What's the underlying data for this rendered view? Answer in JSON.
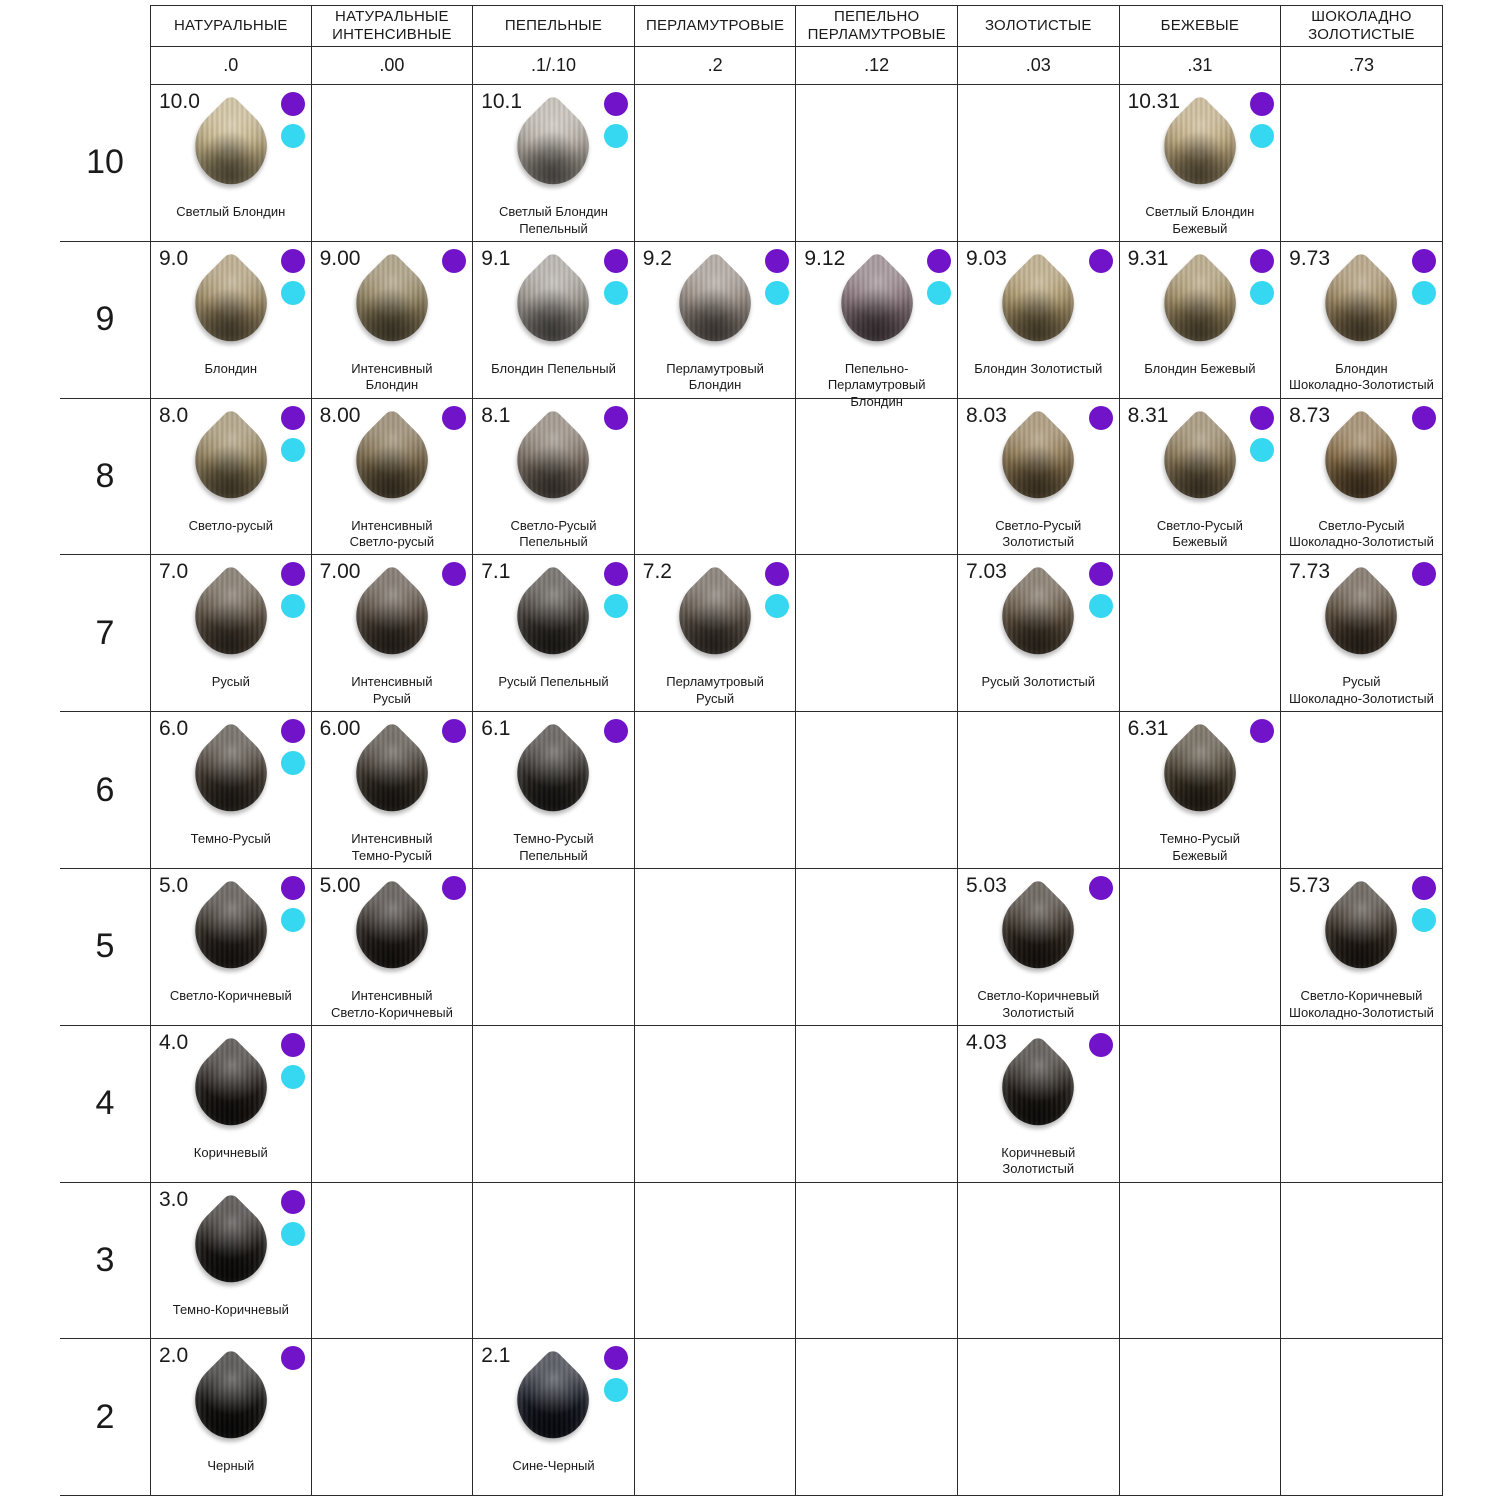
{
  "dot_colors": {
    "purple": "#7113c9",
    "cyan": "#36d7f0"
  },
  "columns": [
    {
      "title_lines": [
        "НАТУРАЛЬНЫЕ"
      ],
      "code": ".0"
    },
    {
      "title_lines": [
        "НАТУРАЛЬНЫЕ",
        "ИНТЕНСИВНЫЕ"
      ],
      "code": ".00"
    },
    {
      "title_lines": [
        "ПЕПЕЛЬНЫЕ"
      ],
      "code": ".1/.10"
    },
    {
      "title_lines": [
        "ПЕРЛАМУТРОВЫЕ"
      ],
      "code": ".2"
    },
    {
      "title_lines": [
        "ПЕПЕЛЬНО",
        "ПЕРЛАМУТРОВЫЕ"
      ],
      "code": ".12"
    },
    {
      "title_lines": [
        "ЗОЛОТИСТЫЕ"
      ],
      "code": ".03"
    },
    {
      "title_lines": [
        "БЕЖЕВЫЕ"
      ],
      "code": ".31"
    },
    {
      "title_lines": [
        "ШОКОЛАДНО",
        "ЗОЛОТИСТЫЕ"
      ],
      "code": ".73"
    }
  ],
  "rows": [
    {
      "level": "10",
      "cells": [
        {
          "code": "10.0",
          "label": [
            "Светлый Блондин"
          ],
          "dots": [
            "purple",
            "cyan"
          ],
          "color": "#c6b383"
        },
        null,
        {
          "code": "10.1",
          "label": [
            "Светлый Блондин",
            "Пепельный"
          ],
          "dots": [
            "purple",
            "cyan"
          ],
          "color": "#b9b1a6"
        },
        null,
        null,
        null,
        {
          "code": "10.31",
          "label": [
            "Светлый Блондин",
            "Бежевый"
          ],
          "dots": [
            "purple",
            "cyan"
          ],
          "color": "#c0a878"
        },
        null
      ]
    },
    {
      "level": "9",
      "cells": [
        {
          "code": "9.0",
          "label": [
            "Блондин"
          ],
          "dots": [
            "purple",
            "cyan"
          ],
          "color": "#a79267"
        },
        {
          "code": "9.00",
          "label": [
            "Интенсивный",
            "Блондин"
          ],
          "dots": [
            "purple"
          ],
          "color": "#94835c"
        },
        {
          "code": "9.1",
          "label": [
            "Блондин Пепельный"
          ],
          "dots": [
            "purple",
            "cyan"
          ],
          "color": "#a49d95"
        },
        {
          "code": "9.2",
          "label": [
            "Перламутровый",
            "Блондин"
          ],
          "dots": [
            "purple",
            "cyan"
          ],
          "color": "#9b8e84"
        },
        {
          "code": "9.12",
          "label": [
            "Пепельно-Перламутровый",
            "Блондин"
          ],
          "dots": [
            "purple",
            "cyan"
          ],
          "color": "#867178"
        },
        {
          "code": "9.03",
          "label": [
            "Блондин Золотистый"
          ],
          "dots": [
            "purple"
          ],
          "color": "#ad9665"
        },
        {
          "code": "9.31",
          "label": [
            "Блондин Бежевый"
          ],
          "dots": [
            "purple",
            "cyan"
          ],
          "color": "#a58f61"
        },
        {
          "code": "9.73",
          "label": [
            "Блондин",
            "Шоколадно-Золотистый"
          ],
          "dots": [
            "purple",
            "cyan"
          ],
          "color": "#a0885d"
        }
      ]
    },
    {
      "level": "8",
      "cells": [
        {
          "code": "8.0",
          "label": [
            "Светло-русый"
          ],
          "dots": [
            "purple",
            "cyan"
          ],
          "color": "#99865c"
        },
        {
          "code": "8.00",
          "label": [
            "Интенсивный",
            "Светло-русый"
          ],
          "dots": [
            "purple"
          ],
          "color": "#7e6b48"
        },
        {
          "code": "8.1",
          "label": [
            "Светло-Русый",
            "Пепельный"
          ],
          "dots": [
            "purple"
          ],
          "color": "#817466"
        },
        null,
        null,
        {
          "code": "8.03",
          "label": [
            "Светло-Русый",
            "Золотистый"
          ],
          "dots": [
            "purple"
          ],
          "color": "#91784e"
        },
        {
          "code": "8.31",
          "label": [
            "Светло-Русый",
            "Бежевый"
          ],
          "dots": [
            "purple",
            "cyan"
          ],
          "color": "#8c7752"
        },
        {
          "code": "8.73",
          "label": [
            "Светло-Русый",
            "Шоколадно-Золотистый"
          ],
          "dots": [
            "purple"
          ],
          "color": "#886a3f"
        }
      ]
    },
    {
      "level": "7",
      "cells": [
        {
          "code": "7.0",
          "label": [
            "Русый"
          ],
          "dots": [
            "purple",
            "cyan"
          ],
          "color": "#5c4e3d"
        },
        {
          "code": "7.00",
          "label": [
            "Интенсивный",
            "Русый"
          ],
          "dots": [
            "purple"
          ],
          "color": "#514437"
        },
        {
          "code": "7.1",
          "label": [
            "Русый Пепельный"
          ],
          "dots": [
            "purple",
            "cyan"
          ],
          "color": "#3f3932"
        },
        {
          "code": "7.2",
          "label": [
            "Перламутровый",
            "Русый"
          ],
          "dots": [
            "purple",
            "cyan"
          ],
          "color": "#5d5145"
        },
        null,
        {
          "code": "7.03",
          "label": [
            "Русый Золотистый"
          ],
          "dots": [
            "purple",
            "cyan"
          ],
          "color": "#5f4f3b"
        },
        null,
        {
          "code": "7.73",
          "label": [
            "Русый",
            "Шоколадно-Золотистый"
          ],
          "dots": [
            "purple"
          ],
          "color": "#564634"
        }
      ]
    },
    {
      "level": "6",
      "cells": [
        {
          "code": "6.0",
          "label": [
            "Темно-Русый"
          ],
          "dots": [
            "purple",
            "cyan"
          ],
          "color": "#3f362b"
        },
        {
          "code": "6.00",
          "label": [
            "Интенсивный",
            "Темно-Русый"
          ],
          "dots": [
            "purple"
          ],
          "color": "#383026"
        },
        {
          "code": "6.1",
          "label": [
            "Темно-Русый",
            "Пепельный"
          ],
          "dots": [
            "purple"
          ],
          "color": "#2d2823"
        },
        null,
        null,
        null,
        {
          "code": "6.31",
          "label": [
            "Темно-Русый",
            "Бежевый"
          ],
          "dots": [
            "purple"
          ],
          "color": "#443927"
        },
        null
      ]
    },
    {
      "level": "5",
      "cells": [
        {
          "code": "5.0",
          "label": [
            "Светло-Коричневый"
          ],
          "dots": [
            "purple",
            "cyan"
          ],
          "color": "#2f2720"
        },
        {
          "code": "5.00",
          "label": [
            "Интенсивный",
            "Светло-Коричневый"
          ],
          "dots": [
            "purple"
          ],
          "color": "#29221c"
        },
        null,
        null,
        null,
        {
          "code": "5.03",
          "label": [
            "Светло-Коричневый",
            "Золотистый"
          ],
          "dots": [
            "purple"
          ],
          "color": "#30261c"
        },
        null,
        {
          "code": "5.73",
          "label": [
            "Светло-Коричневый",
            "Шоколадно-Золотистый"
          ],
          "dots": [
            "purple",
            "cyan"
          ],
          "color": "#32281e"
        }
      ]
    },
    {
      "level": "4",
      "cells": [
        {
          "code": "4.0",
          "label": [
            "Коричневый"
          ],
          "dots": [
            "purple",
            "cyan"
          ],
          "color": "#1f1914"
        },
        null,
        null,
        null,
        null,
        {
          "code": "4.03",
          "label": [
            "Коричневый",
            "Золотистый"
          ],
          "dots": [
            "purple"
          ],
          "color": "#211b15"
        },
        null,
        null
      ]
    },
    {
      "level": "3",
      "cells": [
        {
          "code": "3.0",
          "label": [
            "Темно-Коричневый"
          ],
          "dots": [
            "purple",
            "cyan"
          ],
          "color": "#1a1512"
        },
        null,
        null,
        null,
        null,
        null,
        null,
        null
      ]
    },
    {
      "level": "2",
      "cells": [
        {
          "code": "2.0",
          "label": [
            "Черный"
          ],
          "dots": [
            "purple"
          ],
          "color": "#131110"
        },
        null,
        {
          "code": "2.1",
          "label": [
            "Сине-Черный"
          ],
          "dots": [
            "purple",
            "cyan"
          ],
          "color": "#131623"
        },
        null,
        null,
        null,
        null,
        null
      ]
    }
  ]
}
